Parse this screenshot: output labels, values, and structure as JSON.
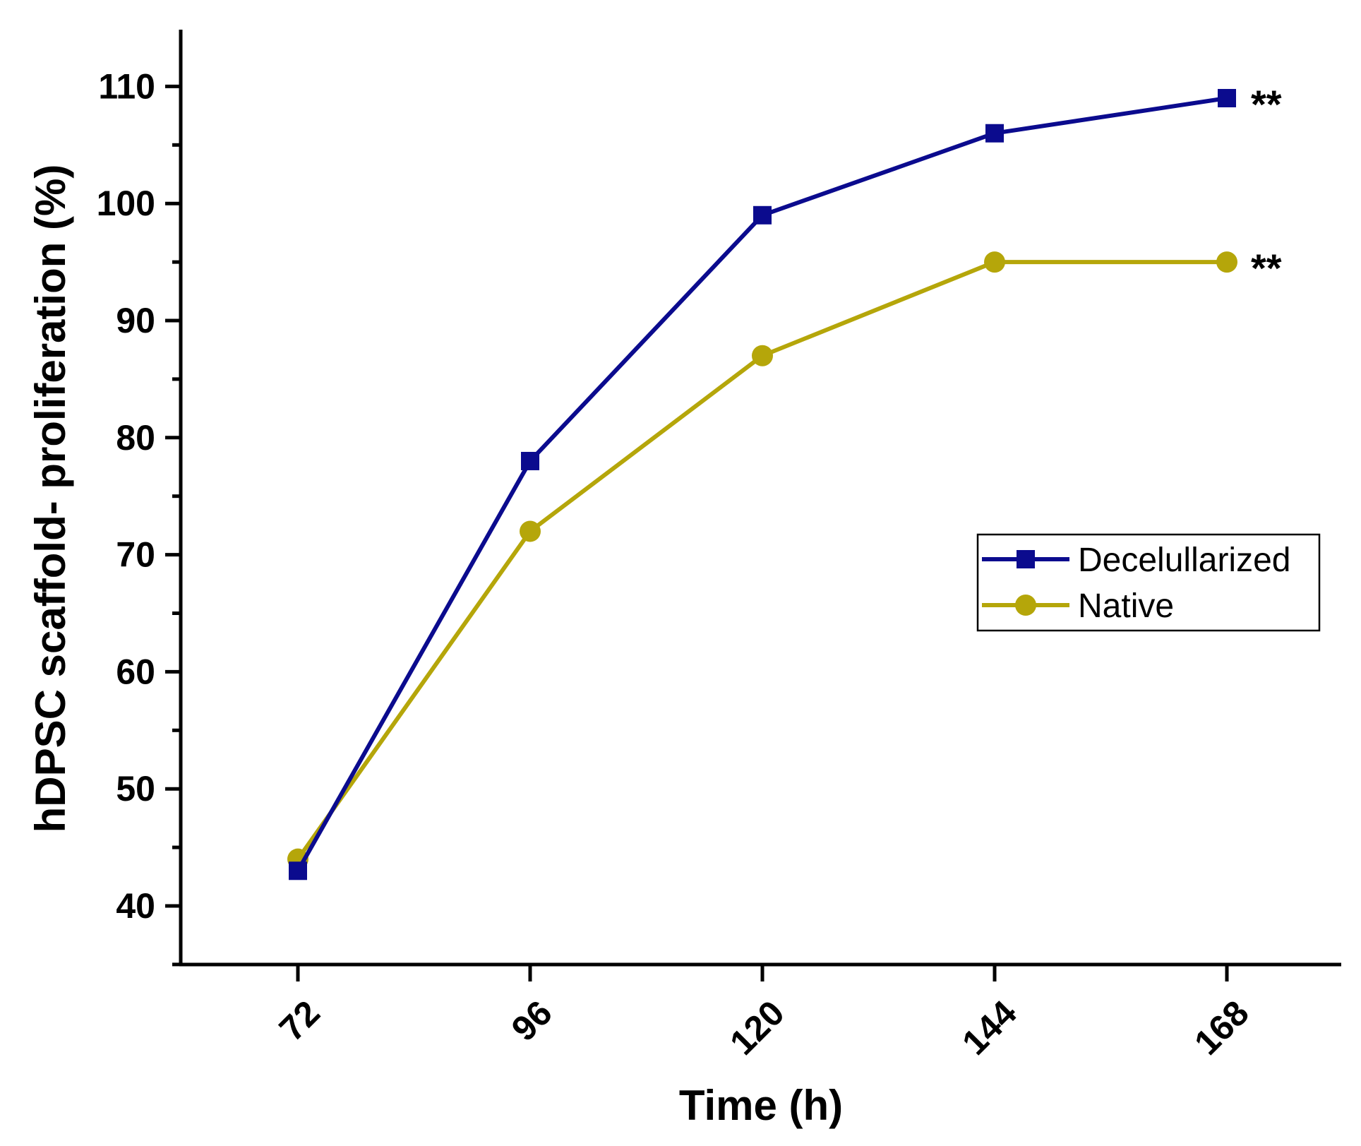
{
  "chart_data": {
    "type": "line",
    "title": "",
    "xlabel": "Time (h)",
    "ylabel": "hDPSC scaffold- proliferation (%)",
    "x": [
      72,
      96,
      120,
      144,
      168
    ],
    "x_tick_labels": [
      "72",
      "96",
      "120",
      "144",
      "168"
    ],
    "y_ticks": [
      40,
      50,
      60,
      70,
      80,
      90,
      100,
      110
    ],
    "y_tick_labels": [
      "40",
      "50",
      "60",
      "70",
      "80",
      "90",
      "100",
      "110"
    ],
    "ylim": [
      35,
      115
    ],
    "grid": false,
    "legend_position": "middle-right",
    "series": [
      {
        "name": "Decelullarized",
        "values": [
          43,
          78,
          99,
          106,
          109
        ],
        "color": "#0b0b8e",
        "marker": "square",
        "end_annotation": "**"
      },
      {
        "name": "Native",
        "values": [
          44,
          72,
          87,
          95,
          95
        ],
        "color": "#b5a60a",
        "marker": "circle",
        "end_annotation": "**"
      }
    ]
  }
}
